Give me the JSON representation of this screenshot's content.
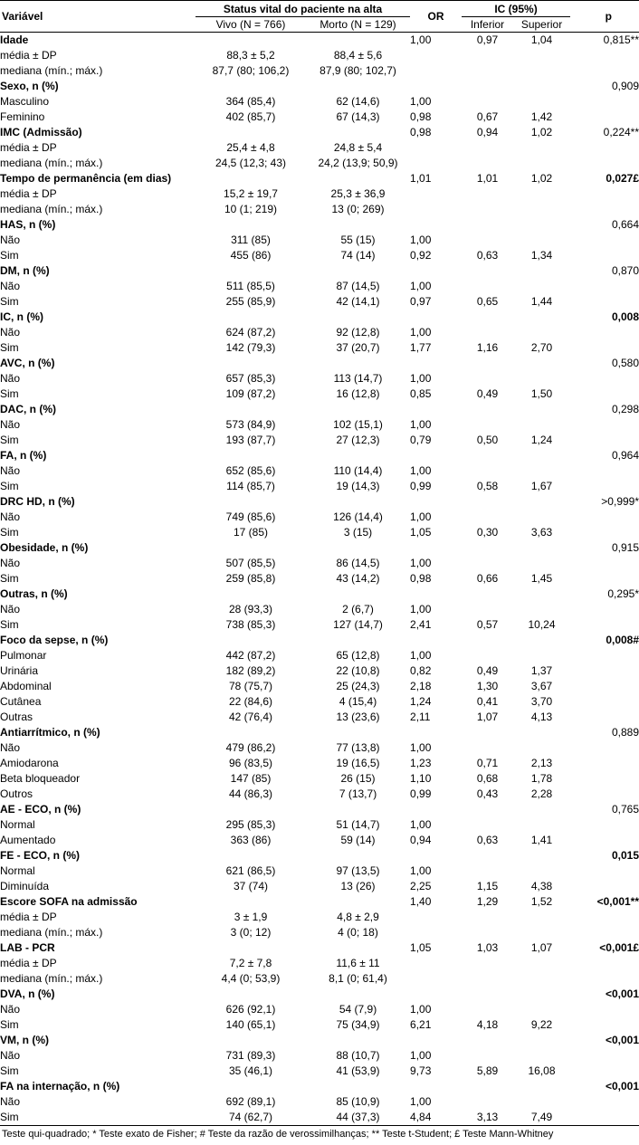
{
  "header": {
    "variable": "Variável",
    "status_group": "Status vital do paciente na alta",
    "alive": "Vivo (N = 766)",
    "dead": "Morto (N = 129)",
    "or": "OR",
    "ci_group": "IC (95%)",
    "ci_lower": "Inferior",
    "ci_upper": "Superior",
    "p": "p"
  },
  "rows": [
    {
      "label": "Idade",
      "bold": true,
      "vivo": "",
      "morto": "",
      "or": "1,00",
      "inf": "0,97",
      "sup": "1,04",
      "p": "0,815**",
      "pbold": false
    },
    {
      "label": "média ± DP",
      "bold": false,
      "vivo": "88,3 ± 5,2",
      "morto": "88,4 ± 5,6",
      "or": "",
      "inf": "",
      "sup": "",
      "p": "",
      "pbold": false
    },
    {
      "label": "mediana (mín.; máx.)",
      "bold": false,
      "vivo": "87,7 (80; 106,2)",
      "morto": "87,9 (80; 102,7)",
      "or": "",
      "inf": "",
      "sup": "",
      "p": "",
      "pbold": false
    },
    {
      "label": "Sexo, n (%)",
      "bold": true,
      "vivo": "",
      "morto": "",
      "or": "",
      "inf": "",
      "sup": "",
      "p": "0,909",
      "pbold": false
    },
    {
      "label": "Masculino",
      "bold": false,
      "vivo": "364 (85,4)",
      "morto": "62 (14,6)",
      "or": "1,00",
      "inf": "",
      "sup": "",
      "p": "",
      "pbold": false
    },
    {
      "label": "Feminino",
      "bold": false,
      "vivo": "402 (85,7)",
      "morto": "67 (14,3)",
      "or": "0,98",
      "inf": "0,67",
      "sup": "1,42",
      "p": "",
      "pbold": false
    },
    {
      "label": "IMC (Admissão)",
      "bold": true,
      "vivo": "",
      "morto": "",
      "or": "0,98",
      "inf": "0,94",
      "sup": "1,02",
      "p": "0,224**",
      "pbold": false
    },
    {
      "label": "média ± DP",
      "bold": false,
      "vivo": "25,4 ± 4,8",
      "morto": "24,8 ± 5,4",
      "or": "",
      "inf": "",
      "sup": "",
      "p": "",
      "pbold": false
    },
    {
      "label": "mediana (mín.; máx.)",
      "bold": false,
      "vivo": "24,5 (12,3; 43)",
      "morto": "24,2 (13,9; 50,9)",
      "or": "",
      "inf": "",
      "sup": "",
      "p": "",
      "pbold": false
    },
    {
      "label": "Tempo de permanência (em dias)",
      "bold": true,
      "vivo": "",
      "morto": "",
      "or": "1,01",
      "inf": "1,01",
      "sup": "1,02",
      "p": "0,027£",
      "pbold": true
    },
    {
      "label": "média ± DP",
      "bold": false,
      "vivo": "15,2 ± 19,7",
      "morto": "25,3 ± 36,9",
      "or": "",
      "inf": "",
      "sup": "",
      "p": "",
      "pbold": false
    },
    {
      "label": "mediana (mín.; máx.)",
      "bold": false,
      "vivo": "10 (1; 219)",
      "morto": "13 (0; 269)",
      "or": "",
      "inf": "",
      "sup": "",
      "p": "",
      "pbold": false
    },
    {
      "label": "HAS, n (%)",
      "bold": true,
      "vivo": "",
      "morto": "",
      "or": "",
      "inf": "",
      "sup": "",
      "p": "0,664",
      "pbold": false
    },
    {
      "label": "Não",
      "bold": false,
      "vivo": "311 (85)",
      "morto": "55 (15)",
      "or": "1,00",
      "inf": "",
      "sup": "",
      "p": "",
      "pbold": false
    },
    {
      "label": "Sim",
      "bold": false,
      "vivo": "455 (86)",
      "morto": "74 (14)",
      "or": "0,92",
      "inf": "0,63",
      "sup": "1,34",
      "p": "",
      "pbold": false
    },
    {
      "label": "DM, n (%)",
      "bold": true,
      "vivo": "",
      "morto": "",
      "or": "",
      "inf": "",
      "sup": "",
      "p": "0,870",
      "pbold": false
    },
    {
      "label": "Não",
      "bold": false,
      "vivo": "511 (85,5)",
      "morto": "87 (14,5)",
      "or": "1,00",
      "inf": "",
      "sup": "",
      "p": "",
      "pbold": false
    },
    {
      "label": "Sim",
      "bold": false,
      "vivo": "255 (85,9)",
      "morto": "42 (14,1)",
      "or": "0,97",
      "inf": "0,65",
      "sup": "1,44",
      "p": "",
      "pbold": false
    },
    {
      "label": "IC, n (%)",
      "bold": true,
      "vivo": "",
      "morto": "",
      "or": "",
      "inf": "",
      "sup": "",
      "p": "0,008",
      "pbold": true
    },
    {
      "label": "Não",
      "bold": false,
      "vivo": "624 (87,2)",
      "morto": "92 (12,8)",
      "or": "1,00",
      "inf": "",
      "sup": "",
      "p": "",
      "pbold": false
    },
    {
      "label": "Sim",
      "bold": false,
      "vivo": "142 (79,3)",
      "morto": "37 (20,7)",
      "or": "1,77",
      "inf": "1,16",
      "sup": "2,70",
      "p": "",
      "pbold": false
    },
    {
      "label": "AVC, n (%)",
      "bold": true,
      "vivo": "",
      "morto": "",
      "or": "",
      "inf": "",
      "sup": "",
      "p": "0,580",
      "pbold": false
    },
    {
      "label": "Não",
      "bold": false,
      "vivo": "657 (85,3)",
      "morto": "113 (14,7)",
      "or": "1,00",
      "inf": "",
      "sup": "",
      "p": "",
      "pbold": false
    },
    {
      "label": "Sim",
      "bold": false,
      "vivo": "109 (87,2)",
      "morto": "16 (12,8)",
      "or": "0,85",
      "inf": "0,49",
      "sup": "1,50",
      "p": "",
      "pbold": false
    },
    {
      "label": "DAC, n (%)",
      "bold": true,
      "vivo": "",
      "morto": "",
      "or": "",
      "inf": "",
      "sup": "",
      "p": "0,298",
      "pbold": false
    },
    {
      "label": "Não",
      "bold": false,
      "vivo": "573 (84,9)",
      "morto": "102 (15,1)",
      "or": "1,00",
      "inf": "",
      "sup": "",
      "p": "",
      "pbold": false
    },
    {
      "label": "Sim",
      "bold": false,
      "vivo": "193 (87,7)",
      "morto": "27 (12,3)",
      "or": "0,79",
      "inf": "0,50",
      "sup": "1,24",
      "p": "",
      "pbold": false
    },
    {
      "label": "FA, n (%)",
      "bold": true,
      "vivo": "",
      "morto": "",
      "or": "",
      "inf": "",
      "sup": "",
      "p": "0,964",
      "pbold": false
    },
    {
      "label": "Não",
      "bold": false,
      "vivo": "652 (85,6)",
      "morto": "110 (14,4)",
      "or": "1,00",
      "inf": "",
      "sup": "",
      "p": "",
      "pbold": false
    },
    {
      "label": "Sim",
      "bold": false,
      "vivo": "114 (85,7)",
      "morto": "19 (14,3)",
      "or": "0,99",
      "inf": "0,58",
      "sup": "1,67",
      "p": "",
      "pbold": false
    },
    {
      "label": "DRC HD, n (%)",
      "bold": true,
      "vivo": "",
      "morto": "",
      "or": "",
      "inf": "",
      "sup": "",
      "p": ">0,999*",
      "pbold": false
    },
    {
      "label": "Não",
      "bold": false,
      "vivo": "749 (85,6)",
      "morto": "126 (14,4)",
      "or": "1,00",
      "inf": "",
      "sup": "",
      "p": "",
      "pbold": false
    },
    {
      "label": "Sim",
      "bold": false,
      "vivo": "17 (85)",
      "morto": "3 (15)",
      "or": "1,05",
      "inf": "0,30",
      "sup": "3,63",
      "p": "",
      "pbold": false
    },
    {
      "label": "Obesidade, n (%)",
      "bold": true,
      "vivo": "",
      "morto": "",
      "or": "",
      "inf": "",
      "sup": "",
      "p": "0,915",
      "pbold": false
    },
    {
      "label": "Não",
      "bold": false,
      "vivo": "507 (85,5)",
      "morto": "86 (14,5)",
      "or": "1,00",
      "inf": "",
      "sup": "",
      "p": "",
      "pbold": false
    },
    {
      "label": "Sim",
      "bold": false,
      "vivo": "259 (85,8)",
      "morto": "43 (14,2)",
      "or": "0,98",
      "inf": "0,66",
      "sup": "1,45",
      "p": "",
      "pbold": false
    },
    {
      "label": "Outras, n (%)",
      "bold": true,
      "vivo": "",
      "morto": "",
      "or": "",
      "inf": "",
      "sup": "",
      "p": "0,295*",
      "pbold": false
    },
    {
      "label": "Não",
      "bold": false,
      "vivo": "28 (93,3)",
      "morto": "2 (6,7)",
      "or": "1,00",
      "inf": "",
      "sup": "",
      "p": "",
      "pbold": false
    },
    {
      "label": "Sim",
      "bold": false,
      "vivo": "738 (85,3)",
      "morto": "127 (14,7)",
      "or": "2,41",
      "inf": "0,57",
      "sup": "10,24",
      "p": "",
      "pbold": false
    },
    {
      "label": "Foco da sepse, n (%)",
      "bold": true,
      "vivo": "",
      "morto": "",
      "or": "",
      "inf": "",
      "sup": "",
      "p": "0,008#",
      "pbold": true
    },
    {
      "label": "Pulmonar",
      "bold": false,
      "vivo": "442 (87,2)",
      "morto": "65 (12,8)",
      "or": "1,00",
      "inf": "",
      "sup": "",
      "p": "",
      "pbold": false
    },
    {
      "label": "Urinária",
      "bold": false,
      "vivo": "182 (89,2)",
      "morto": "22 (10,8)",
      "or": "0,82",
      "inf": "0,49",
      "sup": "1,37",
      "p": "",
      "pbold": false
    },
    {
      "label": "Abdominal",
      "bold": false,
      "vivo": "78 (75,7)",
      "morto": "25 (24,3)",
      "or": "2,18",
      "inf": "1,30",
      "sup": "3,67",
      "p": "",
      "pbold": false
    },
    {
      "label": "Cutânea",
      "bold": false,
      "vivo": "22 (84,6)",
      "morto": "4 (15,4)",
      "or": "1,24",
      "inf": "0,41",
      "sup": "3,70",
      "p": "",
      "pbold": false
    },
    {
      "label": "Outras",
      "bold": false,
      "vivo": "42 (76,4)",
      "morto": "13 (23,6)",
      "or": "2,11",
      "inf": "1,07",
      "sup": "4,13",
      "p": "",
      "pbold": false
    },
    {
      "label": "Antiarrítmico, n (%)",
      "bold": true,
      "vivo": "",
      "morto": "",
      "or": "",
      "inf": "",
      "sup": "",
      "p": "0,889",
      "pbold": false
    },
    {
      "label": "Não",
      "bold": false,
      "vivo": "479 (86,2)",
      "morto": "77 (13,8)",
      "or": "1,00",
      "inf": "",
      "sup": "",
      "p": "",
      "pbold": false
    },
    {
      "label": "Amiodarona",
      "bold": false,
      "vivo": "96 (83,5)",
      "morto": "19 (16,5)",
      "or": "1,23",
      "inf": "0,71",
      "sup": "2,13",
      "p": "",
      "pbold": false
    },
    {
      "label": "Beta bloqueador",
      "bold": false,
      "vivo": "147 (85)",
      "morto": "26 (15)",
      "or": "1,10",
      "inf": "0,68",
      "sup": "1,78",
      "p": "",
      "pbold": false
    },
    {
      "label": "Outros",
      "bold": false,
      "vivo": "44 (86,3)",
      "morto": "7 (13,7)",
      "or": "0,99",
      "inf": "0,43",
      "sup": "2,28",
      "p": "",
      "pbold": false
    },
    {
      "label": "AE - ECO, n (%)",
      "bold": true,
      "vivo": "",
      "morto": "",
      "or": "",
      "inf": "",
      "sup": "",
      "p": "0,765",
      "pbold": false
    },
    {
      "label": "Normal",
      "bold": false,
      "vivo": "295 (85,3)",
      "morto": "51 (14,7)",
      "or": "1,00",
      "inf": "",
      "sup": "",
      "p": "",
      "pbold": false
    },
    {
      "label": "Aumentado",
      "bold": false,
      "vivo": "363 (86)",
      "morto": "59 (14)",
      "or": "0,94",
      "inf": "0,63",
      "sup": "1,41",
      "p": "",
      "pbold": false
    },
    {
      "label": "FE - ECO, n (%)",
      "bold": true,
      "vivo": "",
      "morto": "",
      "or": "",
      "inf": "",
      "sup": "",
      "p": "0,015",
      "pbold": true
    },
    {
      "label": "Normal",
      "bold": false,
      "vivo": "621 (86,5)",
      "morto": "97 (13,5)",
      "or": "1,00",
      "inf": "",
      "sup": "",
      "p": "",
      "pbold": false
    },
    {
      "label": "Diminuída",
      "bold": false,
      "vivo": "37 (74)",
      "morto": "13 (26)",
      "or": "2,25",
      "inf": "1,15",
      "sup": "4,38",
      "p": "",
      "pbold": false
    },
    {
      "label": "Escore SOFA na admissão",
      "bold": true,
      "vivo": "",
      "morto": "",
      "or": "1,40",
      "inf": "1,29",
      "sup": "1,52",
      "p": "<0,001**",
      "pbold": true
    },
    {
      "label": "média ± DP",
      "bold": false,
      "vivo": "3 ± 1,9",
      "morto": "4,8 ± 2,9",
      "or": "",
      "inf": "",
      "sup": "",
      "p": "",
      "pbold": false
    },
    {
      "label": "mediana (mín.; máx.)",
      "bold": false,
      "vivo": "3 (0; 12)",
      "morto": "4 (0; 18)",
      "or": "",
      "inf": "",
      "sup": "",
      "p": "",
      "pbold": false
    },
    {
      "label": "LAB - PCR",
      "bold": true,
      "vivo": "",
      "morto": "",
      "or": "1,05",
      "inf": "1,03",
      "sup": "1,07",
      "p": "<0,001£",
      "pbold": true
    },
    {
      "label": "média ± DP",
      "bold": false,
      "vivo": "7,2 ± 7,8",
      "morto": "11,6 ± 11",
      "or": "",
      "inf": "",
      "sup": "",
      "p": "",
      "pbold": false
    },
    {
      "label": "mediana (mín.; máx.)",
      "bold": false,
      "vivo": "4,4 (0; 53,9)",
      "morto": "8,1 (0; 61,4)",
      "or": "",
      "inf": "",
      "sup": "",
      "p": "",
      "pbold": false
    },
    {
      "label": "DVA, n (%)",
      "bold": true,
      "vivo": "",
      "morto": "",
      "or": "",
      "inf": "",
      "sup": "",
      "p": "<0,001",
      "pbold": true
    },
    {
      "label": "Não",
      "bold": false,
      "vivo": "626 (92,1)",
      "morto": "54 (7,9)",
      "or": "1,00",
      "inf": "",
      "sup": "",
      "p": "",
      "pbold": false
    },
    {
      "label": "Sim",
      "bold": false,
      "vivo": "140 (65,1)",
      "morto": "75 (34,9)",
      "or": "6,21",
      "inf": "4,18",
      "sup": "9,22",
      "p": "",
      "pbold": false
    },
    {
      "label": "VM, n (%)",
      "bold": true,
      "vivo": "",
      "morto": "",
      "or": "",
      "inf": "",
      "sup": "",
      "p": "<0,001",
      "pbold": true
    },
    {
      "label": "Não",
      "bold": false,
      "vivo": "731 (89,3)",
      "morto": "88 (10,7)",
      "or": "1,00",
      "inf": "",
      "sup": "",
      "p": "",
      "pbold": false
    },
    {
      "label": "Sim",
      "bold": false,
      "vivo": "35 (46,1)",
      "morto": "41 (53,9)",
      "or": "9,73",
      "inf": "5,89",
      "sup": "16,08",
      "p": "",
      "pbold": false
    },
    {
      "label": "FA na internação, n (%)",
      "bold": true,
      "vivo": "",
      "morto": "",
      "or": "",
      "inf": "",
      "sup": "",
      "p": "<0,001",
      "pbold": true
    },
    {
      "label": "Não",
      "bold": false,
      "vivo": "692 (89,1)",
      "morto": "85 (10,9)",
      "or": "1,00",
      "inf": "",
      "sup": "",
      "p": "",
      "pbold": false
    },
    {
      "label": "Sim",
      "bold": false,
      "vivo": "74 (62,7)",
      "morto": "44 (37,3)",
      "or": "4,84",
      "inf": "3,13",
      "sup": "7,49",
      "p": "",
      "pbold": false
    }
  ],
  "footnote": "Teste qui-quadrado; * Teste exato de Fisher; # Teste da razão de verossimilhanças; ** Teste t-Student; £ Teste Mann-Whitney"
}
